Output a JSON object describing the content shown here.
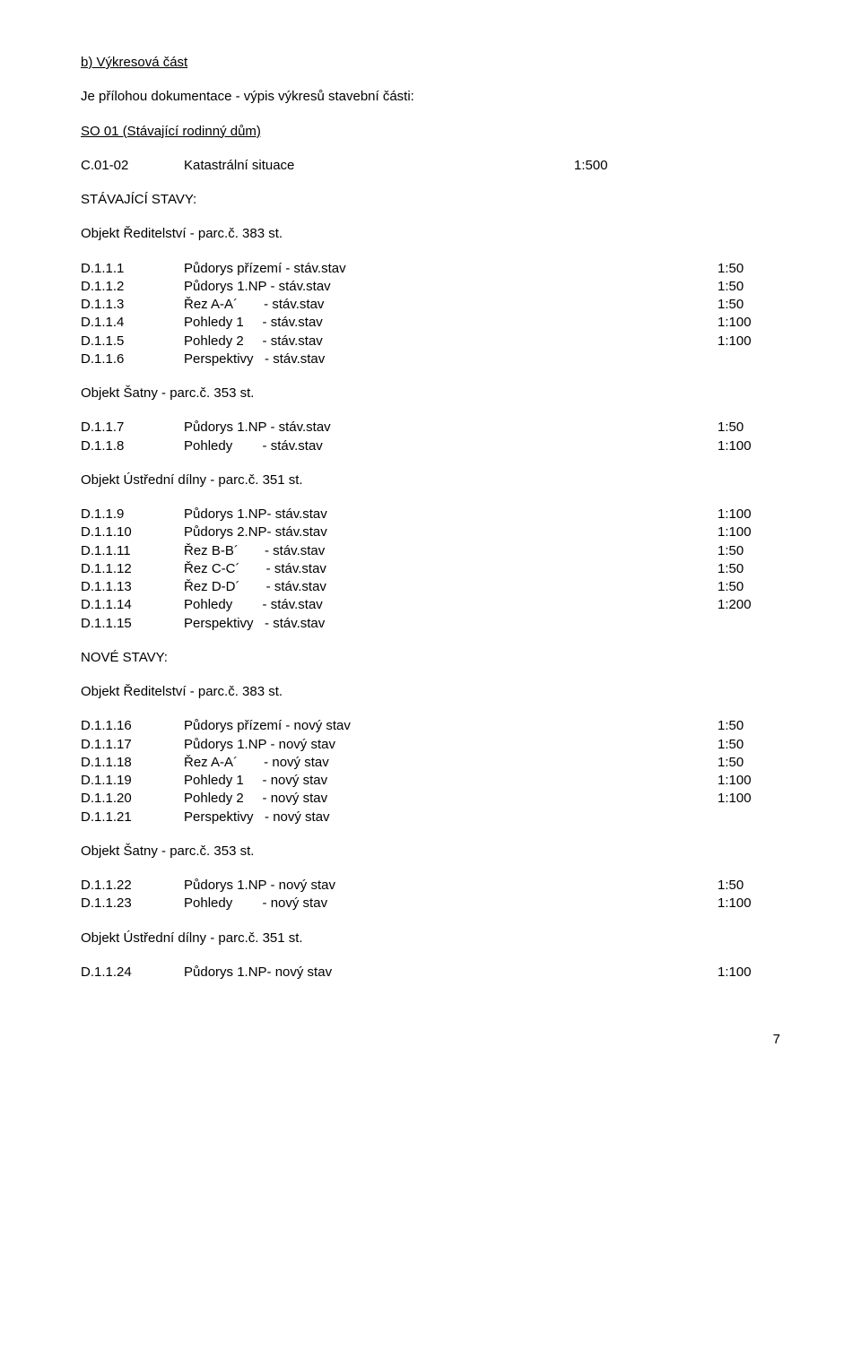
{
  "title": "b) Výkresová část",
  "intro": "Je přílohou dokumentace - výpis výkresů stavební části:",
  "so_line": "SO 01 (Stávající rodinný dům)",
  "katastral": {
    "code": "C.01-02",
    "desc": "Katastrální situace",
    "scale": "1:500"
  },
  "stav_heading": "STÁVAJÍCÍ STAVY:",
  "obj_red_383": "Objekt Ředitelství - parc.č. 383 st.",
  "stav_red_rows": [
    {
      "code": "D.1.1.1",
      "desc": "Půdorys přízemí - stáv.stav",
      "scale": "1:50"
    },
    {
      "code": "D.1.1.2",
      "desc": "Půdorys 1.NP - stáv.stav",
      "scale": "1:50"
    },
    {
      "code": "D.1.1.3",
      "desc": "Řez A-A´       - stáv.stav",
      "scale": "1:50"
    },
    {
      "code": "D.1.1.4",
      "desc": "Pohledy 1     - stáv.stav",
      "scale": "1:100"
    },
    {
      "code": "D.1.1.5",
      "desc": "Pohledy 2     - stáv.stav",
      "scale": "1:100"
    },
    {
      "code": "D.1.1.6",
      "desc": "Perspektivy   - stáv.stav",
      "scale": ""
    }
  ],
  "obj_satny_353": "Objekt Šatny - parc.č. 353 st.",
  "stav_satny_rows": [
    {
      "code": "D.1.1.7",
      "desc": "Půdorys 1.NP - stáv.stav",
      "scale": "1:50"
    },
    {
      "code": "D.1.1.8",
      "desc": "Pohledy        - stáv.stav",
      "scale": "1:100"
    }
  ],
  "obj_dilny_351": "Objekt Ústřední dílny - parc.č. 351 st.",
  "stav_dilny_rows": [
    {
      "code": "D.1.1.9",
      "desc": "Půdorys 1.NP- stáv.stav",
      "scale": "1:100"
    },
    {
      "code": "D.1.1.10",
      "desc": "Půdorys 2.NP- stáv.stav",
      "scale": "1:100"
    },
    {
      "code": "D.1.1.11",
      "desc": "Řez B-B´       - stáv.stav",
      "scale": "1:50"
    },
    {
      "code": "D.1.1.12",
      "desc": "Řez C-C´       - stáv.stav",
      "scale": "1:50"
    },
    {
      "code": "D.1.1.13",
      "desc": "Řez D-D´       - stáv.stav",
      "scale": "1:50"
    },
    {
      "code": "D.1.1.14",
      "desc": "Pohledy        - stáv.stav",
      "scale": "1:200"
    },
    {
      "code": "D.1.1.15",
      "desc": "Perspektivy   - stáv.stav",
      "scale": ""
    }
  ],
  "nove_heading": "NOVÉ STAVY:",
  "nove_red_rows": [
    {
      "code": "D.1.1.16",
      "desc": "Půdorys přízemí - nový stav",
      "scale": "1:50"
    },
    {
      "code": "D.1.1.17",
      "desc": "Půdorys 1.NP - nový stav",
      "scale": "1:50"
    },
    {
      "code": "D.1.1.18",
      "desc": "Řez A-A´       - nový stav",
      "scale": "1:50"
    },
    {
      "code": "D.1.1.19",
      "desc": "Pohledy 1     - nový stav",
      "scale": "1:100"
    },
    {
      "code": "D.1.1.20",
      "desc": "Pohledy 2     - nový stav",
      "scale": "1:100"
    },
    {
      "code": "D.1.1.21",
      "desc": "Perspektivy   - nový stav",
      "scale": ""
    }
  ],
  "nove_satny_rows": [
    {
      "code": "D.1.1.22",
      "desc": "Půdorys 1.NP - nový stav",
      "scale": "1:50"
    },
    {
      "code": "D.1.1.23",
      "desc": "Pohledy        - nový stav",
      "scale": "1:100"
    }
  ],
  "nove_dilny_rows": [
    {
      "code": "D.1.1.24",
      "desc": "Půdorys 1.NP- nový stav",
      "scale": "1:100"
    }
  ],
  "page_number": "7"
}
